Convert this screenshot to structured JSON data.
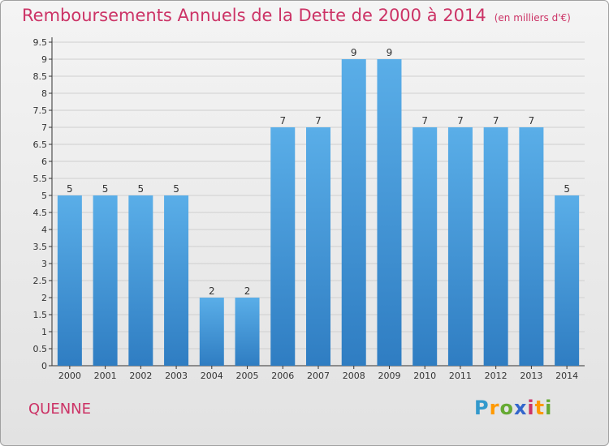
{
  "title": "Remboursements Annuels de la Dette de 2000 à 2014",
  "unit_note": "(en milliers d'€)",
  "town": "QUENNE",
  "logo": {
    "text": "Proxiti",
    "letters": [
      {
        "ch": "P",
        "color": "#3399cc"
      },
      {
        "ch": "r",
        "color": "#ff9900"
      },
      {
        "ch": "o",
        "color": "#66aa33"
      },
      {
        "ch": "x",
        "color": "#3366cc"
      },
      {
        "ch": "i",
        "color": "#cc3366"
      },
      {
        "ch": "t",
        "color": "#ff9900"
      },
      {
        "ch": "i",
        "color": "#66aa33"
      }
    ]
  },
  "colors": {
    "title": "#cc3366",
    "bar_light": "#5aaee8",
    "bar_dark": "#2f7dc2",
    "grid": "#cfcfcf",
    "axis": "#333333"
  },
  "chart_data": {
    "type": "bar",
    "title": "Remboursements Annuels de la Dette de 2000 à 2014",
    "xlabel": "",
    "ylabel": "",
    "categories": [
      "2000",
      "2001",
      "2002",
      "2003",
      "2004",
      "2005",
      "2006",
      "2007",
      "2008",
      "2009",
      "2010",
      "2011",
      "2012",
      "2013",
      "2014"
    ],
    "values": [
      5,
      5,
      5,
      5,
      2,
      2,
      7,
      7,
      9,
      9,
      7,
      7,
      7,
      7,
      5
    ],
    "data_labels": [
      "5",
      "5",
      "5",
      "5",
      "2",
      "2",
      "7",
      "7",
      "9",
      "9",
      "7",
      "7",
      "7",
      "7",
      "5"
    ],
    "ylim": [
      0,
      9.5
    ],
    "yticks": [
      "0",
      "0.5",
      "1",
      "1.5",
      "2",
      "2.5",
      "3",
      "3.5",
      "4",
      "4.5",
      "5",
      "5.5",
      "6",
      "6.5",
      "7",
      "7.5",
      "8",
      "8.5",
      "9",
      "9.5"
    ],
    "grid": true,
    "legend": "none"
  }
}
